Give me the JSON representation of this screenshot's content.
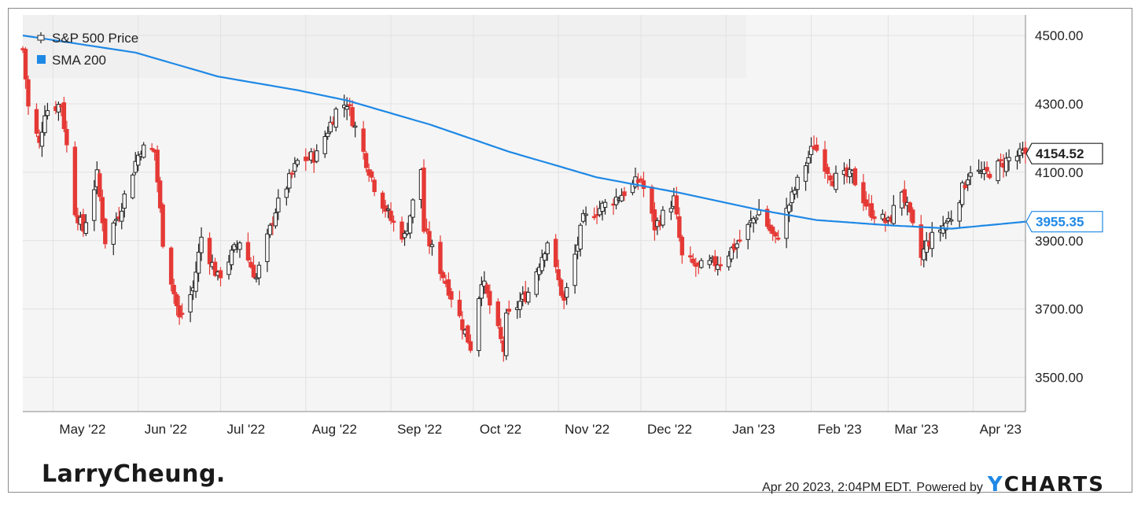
{
  "chart_data": {
    "type": "candlestick",
    "legend": [
      {
        "label": "S&P 500 Price",
        "icon": "candlestick-icon"
      },
      {
        "label": "SMA 200",
        "color": "#1e88e5",
        "icon": "square-swatch"
      }
    ],
    "y_ticks": [
      "4500.00",
      "4300.00",
      "4100.00",
      "3900.00",
      "3700.00",
      "3500.00"
    ],
    "y_tick_values": [
      4500,
      4300,
      4100,
      3900,
      3700,
      3500
    ],
    "ylim": [
      3400,
      4560
    ],
    "x_ticks": [
      {
        "label": "May '22",
        "date": "2022-05-01"
      },
      {
        "label": "Jun '22",
        "date": "2022-06-01"
      },
      {
        "label": "Jul '22",
        "date": "2022-07-01"
      },
      {
        "label": "Aug '22",
        "date": "2022-08-01"
      },
      {
        "label": "Sep '22",
        "date": "2022-09-01"
      },
      {
        "label": "Oct '22",
        "date": "2022-10-01"
      },
      {
        "label": "Nov '22",
        "date": "2022-11-01"
      },
      {
        "label": "Dec '22",
        "date": "2022-12-01"
      },
      {
        "label": "Jan '23",
        "date": "2023-01-01"
      },
      {
        "label": "Feb '23",
        "date": "2023-02-01"
      },
      {
        "label": "Mar '23",
        "date": "2023-03-01"
      },
      {
        "label": "Apr '23",
        "date": "2023-04-01"
      }
    ],
    "xlim": [
      "2022-04-20",
      "2023-04-20"
    ],
    "up_color": "#ffffff",
    "down_color": "#e53935",
    "sma_color": "#1e88e5",
    "price_keypoints": [
      [
        "2022-04-20",
        4460
      ],
      [
        "2022-04-22",
        4290
      ],
      [
        "2022-04-26",
        4180
      ],
      [
        "2022-04-28",
        4280
      ],
      [
        "2022-05-04",
        4300
      ],
      [
        "2022-05-09",
        3990
      ],
      [
        "2022-05-12",
        3930
      ],
      [
        "2022-05-17",
        4090
      ],
      [
        "2022-05-20",
        3900
      ],
      [
        "2022-05-25",
        3980
      ],
      [
        "2022-05-31",
        4130
      ],
      [
        "2022-06-02",
        4170
      ],
      [
        "2022-06-07",
        4160
      ],
      [
        "2022-06-10",
        3900
      ],
      [
        "2022-06-16",
        3670
      ],
      [
        "2022-06-21",
        3760
      ],
      [
        "2022-06-24",
        3910
      ],
      [
        "2022-06-30",
        3790
      ],
      [
        "2022-07-08",
        3900
      ],
      [
        "2022-07-14",
        3790
      ],
      [
        "2022-07-21",
        3990
      ],
      [
        "2022-07-29",
        4130
      ],
      [
        "2022-08-05",
        4150
      ],
      [
        "2022-08-12",
        4280
      ],
      [
        "2022-08-16",
        4305
      ],
      [
        "2022-08-19",
        4230
      ],
      [
        "2022-08-26",
        4060
      ],
      [
        "2022-09-01",
        3960
      ],
      [
        "2022-09-06",
        3910
      ],
      [
        "2022-09-12",
        4110
      ],
      [
        "2022-09-13",
        3930
      ],
      [
        "2022-09-22",
        3760
      ],
      [
        "2022-09-30",
        3590
      ],
      [
        "2022-10-04",
        3790
      ],
      [
        "2022-10-12",
        3580
      ],
      [
        "2022-10-13",
        3670
      ],
      [
        "2022-10-21",
        3750
      ],
      [
        "2022-10-28",
        3900
      ],
      [
        "2022-11-03",
        3720
      ],
      [
        "2022-11-10",
        3960
      ],
      [
        "2022-11-15",
        3990
      ],
      [
        "2022-11-23",
        4030
      ],
      [
        "2022-12-01",
        4080
      ],
      [
        "2022-12-06",
        3940
      ],
      [
        "2022-12-13",
        4020
      ],
      [
        "2022-12-16",
        3850
      ],
      [
        "2022-12-22",
        3820
      ],
      [
        "2022-12-30",
        3840
      ],
      [
        "2023-01-06",
        3900
      ],
      [
        "2023-01-13",
        3990
      ],
      [
        "2023-01-19",
        3900
      ],
      [
        "2023-01-27",
        4070
      ],
      [
        "2023-02-02",
        4180
      ],
      [
        "2023-02-09",
        4080
      ],
      [
        "2023-02-16",
        4090
      ],
      [
        "2023-02-22",
        3990
      ],
      [
        "2023-03-01",
        3950
      ],
      [
        "2023-03-06",
        4050
      ],
      [
        "2023-03-13",
        3850
      ],
      [
        "2023-03-15",
        3890
      ],
      [
        "2023-03-24",
        3970
      ],
      [
        "2023-03-31",
        4110
      ],
      [
        "2023-04-05",
        4090
      ],
      [
        "2023-04-14",
        4140
      ],
      [
        "2023-04-20",
        4154.52
      ]
    ],
    "sma_keypoints": [
      [
        "2022-04-20",
        4500
      ],
      [
        "2022-05-31",
        4450
      ],
      [
        "2022-06-30",
        4380
      ],
      [
        "2022-07-29",
        4340
      ],
      [
        "2022-08-16",
        4310
      ],
      [
        "2022-09-15",
        4240
      ],
      [
        "2022-10-14",
        4160
      ],
      [
        "2022-11-15",
        4085
      ],
      [
        "2022-12-15",
        4040
      ],
      [
        "2023-01-13",
        3990
      ],
      [
        "2023-02-03",
        3960
      ],
      [
        "2023-03-01",
        3945
      ],
      [
        "2023-03-24",
        3935
      ],
      [
        "2023-04-20",
        3955.35
      ]
    ],
    "last_price": {
      "label": "4154.52",
      "value": 4154.52
    },
    "last_sma": {
      "label": "3955.35",
      "value": 3955.35
    }
  },
  "brand": "LarryCheung.",
  "footer": {
    "timestamp": "Apr 20 2023, 2:04PM EDT.",
    "powered_by": "Powered by",
    "logo_y": "Y",
    "logo_rest": "CHARTS"
  }
}
